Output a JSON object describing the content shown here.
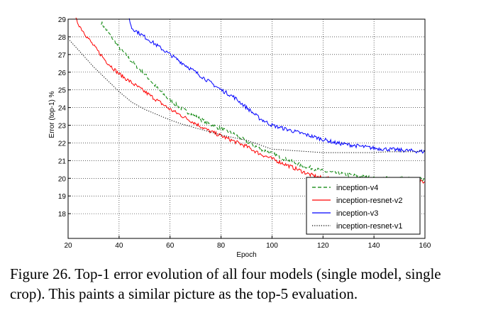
{
  "chart_data": {
    "type": "line",
    "title": "",
    "xlabel": "Epoch",
    "ylabel": "Error (top-1) %",
    "xlim": [
      20,
      160
    ],
    "ylim": [
      16.6,
      29
    ],
    "xticks": [
      20,
      40,
      60,
      80,
      100,
      120,
      140,
      160
    ],
    "yticks": [
      18,
      19,
      20,
      21,
      22,
      23,
      24,
      25,
      26,
      27,
      28,
      29
    ],
    "grid": true,
    "legend_position": "bottom-right",
    "series": [
      {
        "name": "inception-v4",
        "color": "#008000",
        "dash": "dashed",
        "x": [
          33,
          35,
          40,
          45,
          50,
          55,
          60,
          65,
          70,
          75,
          80,
          85,
          90,
          95,
          100,
          105,
          110,
          115,
          120,
          125,
          130,
          135,
          140,
          145,
          150,
          155,
          160
        ],
        "y": [
          28.8,
          28.4,
          27.4,
          26.6,
          25.9,
          25.1,
          24.4,
          23.9,
          23.5,
          23.1,
          22.8,
          22.5,
          22.1,
          21.7,
          21.4,
          21.1,
          20.8,
          20.6,
          20.4,
          20.3,
          20.2,
          20.1,
          20.0,
          20.0,
          20.0,
          19.95,
          19.95
        ]
      },
      {
        "name": "inception-resnet-v2",
        "color": "#ff0000",
        "dash": "solid",
        "x": [
          23,
          25,
          30,
          35,
          40,
          45,
          50,
          55,
          60,
          65,
          70,
          75,
          80,
          85,
          90,
          95,
          100,
          105,
          110,
          115,
          120,
          125,
          130,
          135,
          140,
          145,
          150,
          155,
          160
        ],
        "y": [
          29.0,
          28.5,
          27.5,
          26.6,
          25.9,
          25.4,
          24.9,
          24.4,
          23.9,
          23.5,
          23.1,
          22.7,
          22.4,
          22.1,
          21.8,
          21.4,
          21.1,
          20.8,
          20.5,
          20.2,
          20.0,
          19.95,
          19.9,
          19.85,
          19.85,
          19.8,
          19.8,
          19.8,
          19.8
        ]
      },
      {
        "name": "inception-v3",
        "color": "#0000ff",
        "dash": "solid",
        "x": [
          44,
          45,
          50,
          55,
          60,
          65,
          70,
          75,
          80,
          85,
          90,
          95,
          100,
          105,
          110,
          115,
          120,
          125,
          130,
          135,
          140,
          145,
          150,
          155,
          160
        ],
        "y": [
          29.0,
          28.5,
          28.0,
          27.5,
          27.0,
          26.5,
          26.0,
          25.5,
          25.0,
          24.6,
          24.0,
          23.4,
          23.0,
          22.8,
          22.6,
          22.4,
          22.2,
          22.0,
          21.9,
          21.8,
          21.7,
          21.65,
          21.6,
          21.55,
          21.5
        ]
      },
      {
        "name": "inception-resnet-v1",
        "color": "#000000",
        "dash": "dotted",
        "x": [
          20,
          25,
          30,
          35,
          40,
          45,
          50,
          55,
          60,
          65,
          70,
          75,
          80,
          85,
          90,
          95,
          100,
          105,
          110,
          115,
          120,
          125,
          130,
          135,
          140,
          145,
          150,
          155,
          160
        ],
        "y": [
          27.9,
          27.1,
          26.3,
          25.6,
          24.9,
          24.3,
          23.9,
          23.6,
          23.3,
          23.05,
          22.85,
          22.65,
          22.45,
          22.3,
          22.15,
          21.9,
          21.65,
          21.6,
          21.55,
          21.5,
          21.45,
          21.45,
          21.45,
          21.45,
          21.45,
          21.5,
          21.5,
          21.5,
          21.55
        ]
      }
    ]
  },
  "caption": "Figure 26. Top-1 error evolution of all four models (single model, single crop). This paints a similar picture as the top-5 evaluation."
}
